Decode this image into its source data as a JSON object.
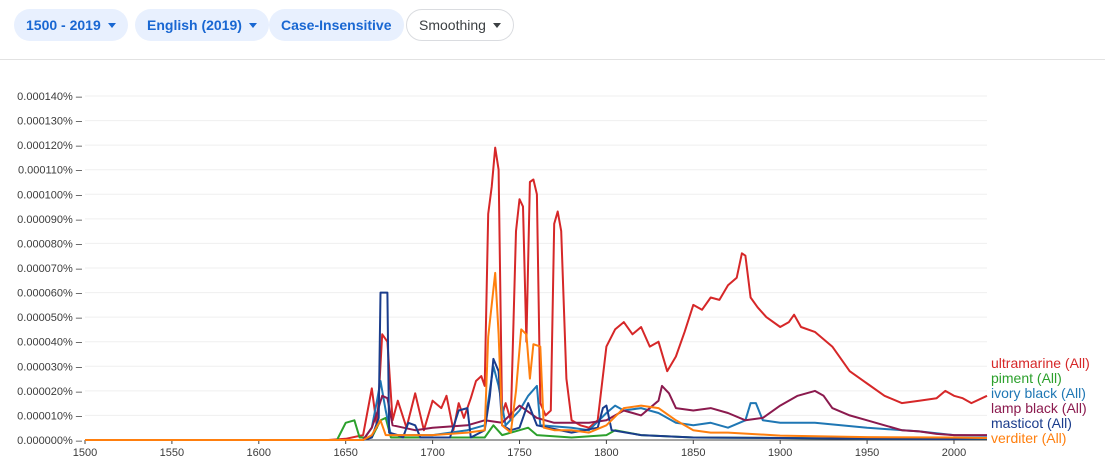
{
  "toolbar": {
    "year_range": "1500 - 2019",
    "corpus": "English (2019)",
    "case": "Case-Insensitive",
    "smoothing": "Smoothing"
  },
  "chart_data": {
    "type": "line",
    "xlim": [
      1500,
      2019
    ],
    "ylim": [
      0,
      0.00014
    ],
    "x_ticks": [
      1500,
      1550,
      1600,
      1650,
      1700,
      1750,
      1800,
      1850,
      1900,
      1950,
      2000
    ],
    "y_ticks": [
      "0.000000%",
      "0.000010%",
      "0.000020%",
      "0.000030%",
      "0.000040%",
      "0.000050%",
      "0.000060%",
      "0.000070%",
      "0.000080%",
      "0.000090%",
      "0.000100%",
      "0.000110%",
      "0.000120%",
      "0.000130%",
      "0.000140%"
    ],
    "grid": true,
    "legend": "right-end-of-lines",
    "series": [
      {
        "name": "ultramarine (All)",
        "color": "#d62728",
        "points": [
          [
            1500,
            0
          ],
          [
            1640,
            0
          ],
          [
            1650,
            5e-07
          ],
          [
            1660,
            2e-06
          ],
          [
            1665,
            2.1e-05
          ],
          [
            1668,
            5e-06
          ],
          [
            1671,
            4.3e-05
          ],
          [
            1674,
            4e-05
          ],
          [
            1677,
            8e-06
          ],
          [
            1680,
            1.6e-05
          ],
          [
            1685,
            5e-06
          ],
          [
            1690,
            1.9e-05
          ],
          [
            1695,
            4e-06
          ],
          [
            1700,
            1.6e-05
          ],
          [
            1705,
            1.3e-05
          ],
          [
            1708,
            1.8e-05
          ],
          [
            1712,
            4e-06
          ],
          [
            1715,
            1.5e-05
          ],
          [
            1718,
            9e-06
          ],
          [
            1722,
            1.7e-05
          ],
          [
            1725,
            2.4e-05
          ],
          [
            1728,
            2.6e-05
          ],
          [
            1730,
            2.2e-05
          ],
          [
            1732,
            9.2e-05
          ],
          [
            1734,
            0.000103
          ],
          [
            1736,
            0.000119
          ],
          [
            1738,
            0.00011
          ],
          [
            1740,
            1e-05
          ],
          [
            1742,
            1.5e-05
          ],
          [
            1745,
            8e-06
          ],
          [
            1748,
            8.5e-05
          ],
          [
            1750,
            9.8e-05
          ],
          [
            1752,
            9.5e-05
          ],
          [
            1754,
            4e-05
          ],
          [
            1756,
            0.000105
          ],
          [
            1758,
            0.000106
          ],
          [
            1760,
            0.0001
          ],
          [
            1762,
            1.5e-05
          ],
          [
            1765,
            1e-05
          ],
          [
            1768,
            1.2e-05
          ],
          [
            1770,
            8.8e-05
          ],
          [
            1772,
            9.3e-05
          ],
          [
            1774,
            8.5e-05
          ],
          [
            1777,
            2.5e-05
          ],
          [
            1780,
            8e-06
          ],
          [
            1785,
            6e-06
          ],
          [
            1790,
            5e-06
          ],
          [
            1795,
            8e-06
          ],
          [
            1798,
            2.6e-05
          ],
          [
            1800,
            3.8e-05
          ],
          [
            1805,
            4.5e-05
          ],
          [
            1810,
            4.8e-05
          ],
          [
            1815,
            4.3e-05
          ],
          [
            1820,
            4.6e-05
          ],
          [
            1825,
            3.8e-05
          ],
          [
            1830,
            4e-05
          ],
          [
            1835,
            2.8e-05
          ],
          [
            1840,
            3.4e-05
          ],
          [
            1845,
            4.4e-05
          ],
          [
            1850,
            5.5e-05
          ],
          [
            1855,
            5.3e-05
          ],
          [
            1860,
            5.8e-05
          ],
          [
            1865,
            5.7e-05
          ],
          [
            1870,
            6.3e-05
          ],
          [
            1875,
            6.6e-05
          ],
          [
            1878,
            7.6e-05
          ],
          [
            1880,
            7.5e-05
          ],
          [
            1883,
            5.8e-05
          ],
          [
            1887,
            5.4e-05
          ],
          [
            1892,
            5e-05
          ],
          [
            1900,
            4.6e-05
          ],
          [
            1905,
            4.8e-05
          ],
          [
            1908,
            5.1e-05
          ],
          [
            1912,
            4.6e-05
          ],
          [
            1920,
            4.4e-05
          ],
          [
            1930,
            3.8e-05
          ],
          [
            1940,
            2.8e-05
          ],
          [
            1950,
            2.3e-05
          ],
          [
            1960,
            1.8e-05
          ],
          [
            1970,
            1.5e-05
          ],
          [
            1980,
            1.6e-05
          ],
          [
            1990,
            1.7e-05
          ],
          [
            1995,
            2e-05
          ],
          [
            2000,
            1.8e-05
          ],
          [
            2005,
            1.7e-05
          ],
          [
            2010,
            1.5e-05
          ],
          [
            2019,
            1.8e-05
          ]
        ]
      },
      {
        "name": "piment (All)",
        "color": "#2ca02c",
        "points": [
          [
            1500,
            0
          ],
          [
            1645,
            0
          ],
          [
            1650,
            7e-06
          ],
          [
            1655,
            8e-06
          ],
          [
            1658,
            1e-06
          ],
          [
            1665,
            1e-06
          ],
          [
            1670,
            8e-06
          ],
          [
            1673,
            9e-06
          ],
          [
            1676,
            1e-06
          ],
          [
            1700,
            1e-06
          ],
          [
            1730,
            1e-06
          ],
          [
            1735,
            6e-06
          ],
          [
            1740,
            2e-06
          ],
          [
            1750,
            4e-06
          ],
          [
            1755,
            5e-06
          ],
          [
            1760,
            2e-06
          ],
          [
            1780,
            1e-06
          ],
          [
            1800,
            2e-06
          ],
          [
            1805,
            4e-06
          ],
          [
            1820,
            2e-06
          ],
          [
            1850,
            1e-06
          ],
          [
            1900,
            8e-07
          ],
          [
            1950,
            5e-07
          ],
          [
            2000,
            4e-07
          ],
          [
            2019,
            4e-07
          ]
        ]
      },
      {
        "name": "ivory black (All)",
        "color": "#1f77b4",
        "points": [
          [
            1500,
            0
          ],
          [
            1660,
            0
          ],
          [
            1665,
            5e-06
          ],
          [
            1668,
            1.6e-05
          ],
          [
            1670,
            2.4e-05
          ],
          [
            1673,
            1.2e-05
          ],
          [
            1676,
            2e-06
          ],
          [
            1700,
            2e-06
          ],
          [
            1720,
            4e-06
          ],
          [
            1730,
            6e-06
          ],
          [
            1735,
            3e-05
          ],
          [
            1738,
            2.2e-05
          ],
          [
            1742,
            6e-06
          ],
          [
            1750,
            1.2e-05
          ],
          [
            1755,
            1.8e-05
          ],
          [
            1760,
            2.2e-05
          ],
          [
            1762,
            6e-06
          ],
          [
            1780,
            5e-06
          ],
          [
            1790,
            4e-06
          ],
          [
            1800,
            1.1e-05
          ],
          [
            1805,
            1.4e-05
          ],
          [
            1810,
            1.2e-05
          ],
          [
            1820,
            1.3e-05
          ],
          [
            1830,
            1.1e-05
          ],
          [
            1840,
            7e-06
          ],
          [
            1850,
            6e-06
          ],
          [
            1860,
            7e-06
          ],
          [
            1870,
            5e-06
          ],
          [
            1880,
            8e-06
          ],
          [
            1883,
            1.5e-05
          ],
          [
            1886,
            1.5e-05
          ],
          [
            1890,
            8e-06
          ],
          [
            1900,
            7e-06
          ],
          [
            1920,
            7e-06
          ],
          [
            1950,
            5e-06
          ],
          [
            1980,
            3.5e-06
          ],
          [
            2000,
            2e-06
          ],
          [
            2019,
            1.7e-06
          ]
        ]
      },
      {
        "name": "lamp black (All)",
        "color": "#8b1a4e",
        "points": [
          [
            1500,
            0
          ],
          [
            1660,
            0
          ],
          [
            1665,
            5e-06
          ],
          [
            1668,
            1.1e-05
          ],
          [
            1671,
            1.8e-05
          ],
          [
            1674,
            1.7e-05
          ],
          [
            1677,
            6e-06
          ],
          [
            1690,
            4e-06
          ],
          [
            1700,
            5e-06
          ],
          [
            1720,
            6e-06
          ],
          [
            1730,
            8e-06
          ],
          [
            1740,
            7e-06
          ],
          [
            1750,
            1.4e-05
          ],
          [
            1760,
            9e-06
          ],
          [
            1770,
            7e-06
          ],
          [
            1780,
            7e-06
          ],
          [
            1790,
            7e-06
          ],
          [
            1800,
            8e-06
          ],
          [
            1810,
            1.2e-05
          ],
          [
            1820,
            1e-05
          ],
          [
            1830,
            1.6e-05
          ],
          [
            1832,
            2.2e-05
          ],
          [
            1836,
            1.9e-05
          ],
          [
            1840,
            1.3e-05
          ],
          [
            1850,
            1.2e-05
          ],
          [
            1860,
            1.3e-05
          ],
          [
            1870,
            1.1e-05
          ],
          [
            1880,
            8e-06
          ],
          [
            1890,
            9e-06
          ],
          [
            1900,
            1.4e-05
          ],
          [
            1910,
            1.8e-05
          ],
          [
            1920,
            2e-05
          ],
          [
            1925,
            1.8e-05
          ],
          [
            1930,
            1.3e-05
          ],
          [
            1940,
            1e-05
          ],
          [
            1950,
            8e-06
          ],
          [
            1960,
            6e-06
          ],
          [
            1970,
            4e-06
          ],
          [
            1980,
            3.5e-06
          ],
          [
            1990,
            2.5e-06
          ],
          [
            2000,
            2e-06
          ],
          [
            2010,
            2e-06
          ],
          [
            2019,
            2e-06
          ]
        ]
      },
      {
        "name": "masticot (All)",
        "color": "#1a3c8c",
        "points": [
          [
            1500,
            0
          ],
          [
            1660,
            0
          ],
          [
            1665,
            1e-06
          ],
          [
            1669,
            9e-06
          ],
          [
            1670,
            6e-05
          ],
          [
            1674,
            6e-05
          ],
          [
            1675,
            3e-06
          ],
          [
            1680,
            2e-06
          ],
          [
            1683,
            1e-06
          ],
          [
            1686,
            7e-06
          ],
          [
            1690,
            6e-06
          ],
          [
            1693,
            1e-06
          ],
          [
            1710,
            1e-06
          ],
          [
            1715,
            1.2e-05
          ],
          [
            1720,
            1.3e-05
          ],
          [
            1722,
            1e-06
          ],
          [
            1730,
            4e-06
          ],
          [
            1733,
            1.8e-05
          ],
          [
            1735,
            3.3e-05
          ],
          [
            1738,
            2.8e-05
          ],
          [
            1740,
            6e-06
          ],
          [
            1745,
            4e-06
          ],
          [
            1750,
            5e-06
          ],
          [
            1755,
            1.5e-05
          ],
          [
            1760,
            6e-06
          ],
          [
            1780,
            3e-06
          ],
          [
            1795,
            5e-06
          ],
          [
            1798,
            1.3e-05
          ],
          [
            1800,
            1.4e-05
          ],
          [
            1803,
            4e-06
          ],
          [
            1820,
            2e-06
          ],
          [
            1850,
            1e-06
          ],
          [
            1900,
            8e-07
          ],
          [
            1950,
            5e-07
          ],
          [
            2000,
            4e-07
          ],
          [
            2019,
            5e-07
          ]
        ]
      },
      {
        "name": "verditer (All)",
        "color": "#ff7f0e",
        "points": [
          [
            1500,
            0
          ],
          [
            1660,
            0
          ],
          [
            1665,
            2e-06
          ],
          [
            1670,
            8e-06
          ],
          [
            1673,
            2e-06
          ],
          [
            1690,
            2e-06
          ],
          [
            1700,
            2e-06
          ],
          [
            1720,
            3e-06
          ],
          [
            1730,
            4e-06
          ],
          [
            1732,
            4.2e-05
          ],
          [
            1734,
            5.5e-05
          ],
          [
            1736,
            6.8e-05
          ],
          [
            1738,
            4.3e-05
          ],
          [
            1740,
            6e-06
          ],
          [
            1745,
            3e-06
          ],
          [
            1748,
            2e-05
          ],
          [
            1751,
            4.5e-05
          ],
          [
            1754,
            4.3e-05
          ],
          [
            1756,
            2.5e-05
          ],
          [
            1758,
            3.9e-05
          ],
          [
            1762,
            3.8e-05
          ],
          [
            1764,
            5e-06
          ],
          [
            1770,
            4e-06
          ],
          [
            1780,
            4e-06
          ],
          [
            1790,
            3e-06
          ],
          [
            1800,
            6e-06
          ],
          [
            1810,
            1.3e-05
          ],
          [
            1820,
            1.4e-05
          ],
          [
            1830,
            1.3e-05
          ],
          [
            1840,
            8e-06
          ],
          [
            1850,
            4e-06
          ],
          [
            1860,
            3e-06
          ],
          [
            1870,
            3e-06
          ],
          [
            1900,
            1.8e-06
          ],
          [
            1950,
            1.2e-06
          ],
          [
            2000,
            1e-06
          ],
          [
            2019,
            8e-07
          ]
        ]
      }
    ]
  }
}
